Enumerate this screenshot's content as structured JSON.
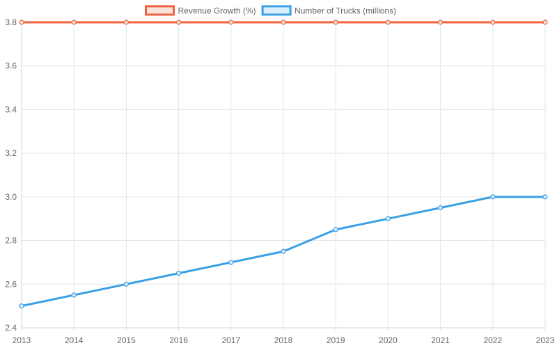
{
  "chart_data": {
    "type": "line",
    "x": [
      "2013",
      "2014",
      "2015",
      "2016",
      "2017",
      "2018",
      "2019",
      "2020",
      "2021",
      "2022",
      "2023"
    ],
    "series": [
      {
        "name": "Revenue Growth (%)",
        "color": "#f0603c",
        "fill": "#fbe3dc",
        "values": [
          3.8,
          3.8,
          3.8,
          3.8,
          3.8,
          3.8,
          3.8,
          3.8,
          3.8,
          3.8,
          3.8
        ]
      },
      {
        "name": "Number of Trucks (millions)",
        "color": "#3aa0e6",
        "fill": "#dbeefb",
        "values": [
          2.5,
          2.55,
          2.6,
          2.65,
          2.7,
          2.75,
          2.85,
          2.9,
          2.95,
          3.0,
          3.0
        ]
      }
    ],
    "ylim": [
      2.4,
      3.8
    ],
    "yticks": [
      "2.4",
      "2.6",
      "2.8",
      "3.0",
      "3.2",
      "3.4",
      "3.6",
      "3.8"
    ],
    "grid": true,
    "legend": "top-center"
  }
}
